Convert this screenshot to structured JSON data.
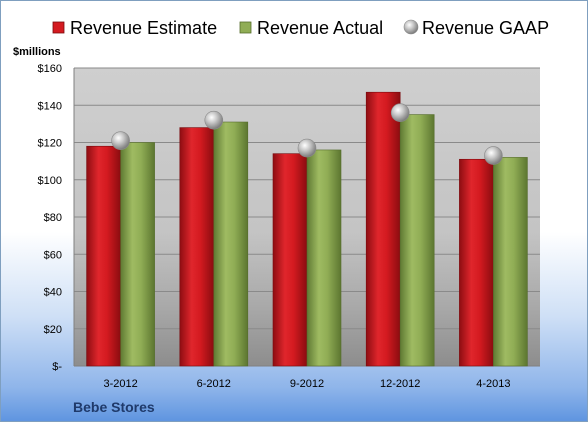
{
  "chart_data": {
    "type": "bar",
    "title": "",
    "xlabel": "",
    "ylabel": "$millions",
    "categories": [
      "3-2012",
      "6-2012",
      "9-2012",
      "12-2012",
      "4-2013"
    ],
    "series": [
      {
        "name": "Revenue Estimate",
        "type": "bar",
        "color": "#c8161d",
        "values": [
          118,
          128,
          114,
          147,
          111
        ]
      },
      {
        "name": "Revenue Actual",
        "type": "bar",
        "color": "#8aa650",
        "values": [
          120,
          131,
          116,
          135,
          112
        ]
      },
      {
        "name": "Revenue GAAP",
        "type": "marker",
        "color": "#b0b0b0",
        "values": [
          121,
          132,
          117,
          136,
          113
        ]
      }
    ],
    "ylim": [
      0,
      160
    ],
    "yticks": [
      0,
      20,
      40,
      60,
      80,
      100,
      120,
      140,
      160
    ],
    "ytick_labels": [
      "$-",
      "$20",
      "$40",
      "$60",
      "$80",
      "$100",
      "$120",
      "$140",
      "$160"
    ],
    "grid": true,
    "legend_position": "top"
  },
  "footer": {
    "company": "Bebe Stores"
  }
}
